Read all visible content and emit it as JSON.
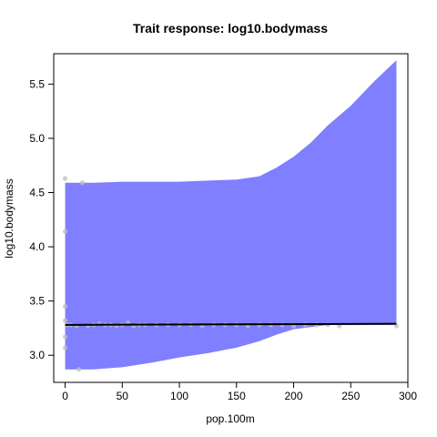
{
  "chart_data": {
    "type": "line",
    "title": "Trait response: log10.bodymass",
    "xlabel": "pop.100m",
    "ylabel": "log10.bodymass",
    "xlim": [
      -10,
      300
    ],
    "ylim": [
      2.75,
      5.78
    ],
    "x_ticks": [
      0,
      50,
      100,
      150,
      200,
      250,
      300
    ],
    "y_ticks": [
      3.0,
      3.5,
      4.0,
      4.5,
      5.0,
      5.5
    ],
    "x_tick_labels": [
      "0",
      "50",
      "100",
      "150",
      "200",
      "250",
      "300"
    ],
    "y_tick_labels": [
      "3.0",
      "3.5",
      "4.0",
      "4.5",
      "5.0",
      "5.5"
    ],
    "grid": false,
    "legend": "none",
    "fit_line": {
      "x": [
        0,
        290
      ],
      "y": [
        3.28,
        3.29
      ],
      "color": "#000000"
    },
    "confidence_band": {
      "color": "#7f7fff",
      "x": [
        0,
        25,
        50,
        75,
        100,
        125,
        150,
        170,
        185,
        200,
        215,
        230,
        250,
        270,
        290
      ],
      "upper": [
        4.59,
        4.59,
        4.6,
        4.6,
        4.6,
        4.61,
        4.62,
        4.65,
        4.73,
        4.83,
        4.96,
        5.12,
        5.3,
        5.52,
        5.72
      ],
      "lower": [
        2.87,
        2.87,
        2.89,
        2.93,
        2.98,
        3.02,
        3.07,
        3.13,
        3.19,
        3.24,
        3.26,
        3.28,
        3.28,
        3.28,
        3.28
      ]
    },
    "points": {
      "color": "#bfbfbf",
      "x": [
        0,
        0,
        0,
        0,
        0,
        0,
        2,
        5,
        10,
        12,
        15,
        20,
        25,
        30,
        35,
        40,
        45,
        50,
        55,
        60,
        65,
        70,
        80,
        90,
        100,
        110,
        120,
        130,
        140,
        150,
        160,
        170,
        180,
        190,
        200,
        210,
        220,
        230,
        240,
        290
      ],
      "y": [
        4.63,
        4.14,
        3.45,
        3.17,
        3.07,
        3.32,
        3.28,
        3.28,
        3.27,
        2.87,
        4.59,
        3.27,
        3.28,
        3.29,
        3.28,
        3.28,
        3.27,
        3.28,
        3.3,
        3.27,
        3.28,
        3.28,
        3.28,
        3.28,
        3.28,
        3.28,
        3.27,
        3.28,
        3.28,
        3.28,
        3.27,
        3.28,
        3.28,
        3.28,
        3.27,
        3.28,
        3.28,
        3.28,
        3.27,
        3.27
      ]
    }
  }
}
